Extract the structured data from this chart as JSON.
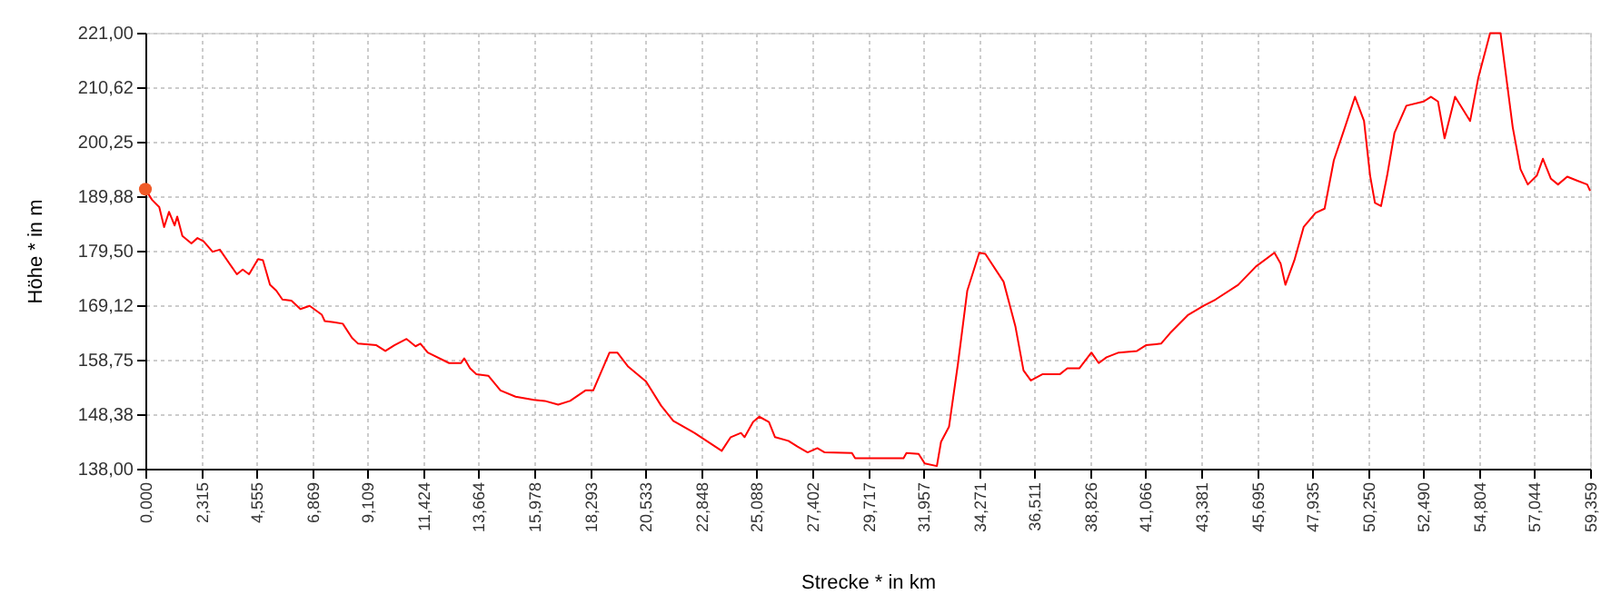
{
  "chart_data": {
    "type": "line",
    "xlabel": "Strecke *  in  km",
    "ylabel": "Höhe *  in  m",
    "xlim": [
      0,
      59.359
    ],
    "ylim": [
      138,
      221
    ],
    "xticks": [
      {
        "value": 0,
        "label": "0,000"
      },
      {
        "value": 2.315,
        "label": "2,315"
      },
      {
        "value": 4.555,
        "label": "4,555"
      },
      {
        "value": 6.869,
        "label": "6,869"
      },
      {
        "value": 9.109,
        "label": "9,109"
      },
      {
        "value": 11.424,
        "label": "11,424"
      },
      {
        "value": 13.664,
        "label": "13,664"
      },
      {
        "value": 15.978,
        "label": "15,978"
      },
      {
        "value": 18.293,
        "label": "18,293"
      },
      {
        "value": 20.533,
        "label": "20,533"
      },
      {
        "value": 22.848,
        "label": "22,848"
      },
      {
        "value": 25.088,
        "label": "25,088"
      },
      {
        "value": 27.402,
        "label": "27,402"
      },
      {
        "value": 29.717,
        "label": "29,717"
      },
      {
        "value": 31.957,
        "label": "31,957"
      },
      {
        "value": 34.271,
        "label": "34,271"
      },
      {
        "value": 36.511,
        "label": "36,511"
      },
      {
        "value": 38.826,
        "label": "38,826"
      },
      {
        "value": 41.066,
        "label": "41,066"
      },
      {
        "value": 43.381,
        "label": "43,381"
      },
      {
        "value": 45.695,
        "label": "45,695"
      },
      {
        "value": 47.935,
        "label": "47,935"
      },
      {
        "value": 50.25,
        "label": "50,250"
      },
      {
        "value": 52.49,
        "label": "52,490"
      },
      {
        "value": 54.804,
        "label": "54,804"
      },
      {
        "value": 57.044,
        "label": "57,044"
      },
      {
        "value": 59.359,
        "label": "59,359"
      }
    ],
    "yticks": [
      {
        "value": 138,
        "label": "138,00"
      },
      {
        "value": 148.375,
        "label": "148,38"
      },
      {
        "value": 158.75,
        "label": "158,75"
      },
      {
        "value": 169.125,
        "label": "169,12"
      },
      {
        "value": 179.5,
        "label": "179,50"
      },
      {
        "value": 189.875,
        "label": "189,88"
      },
      {
        "value": 200.25,
        "label": "200,25"
      },
      {
        "value": 210.625,
        "label": "210,62"
      },
      {
        "value": 221,
        "label": "221,00"
      }
    ],
    "grid": true,
    "line_style": "solid",
    "series": [
      {
        "color": "#ff0000",
        "marker": "none",
        "x": [
          0,
          0.27,
          0.57,
          0.77,
          0.97,
          1.2,
          1.31,
          1.52,
          1.89,
          2.14,
          2.39,
          2.76,
          3.06,
          3.76,
          4.0,
          4.26,
          4.63,
          4.83,
          5.12,
          5.38,
          5.63,
          6.0,
          6.37,
          6.75,
          7.25,
          7.37,
          7.74,
          8.11,
          8.49,
          8.74,
          9.49,
          9.86,
          10.23,
          10.73,
          11.1,
          11.3,
          11.6,
          12.48,
          12.97,
          13.1,
          13.34,
          13.6,
          14.09,
          14.59,
          15.21,
          15.96,
          16.41,
          16.96,
          17.45,
          18.08,
          18.4,
          19.07,
          19.39,
          19.82,
          20.57,
          21.19,
          21.69,
          22.56,
          23.68,
          24.05,
          24.47,
          24.62,
          24.97,
          25.22,
          25.62,
          25.87,
          26.42,
          26.79,
          27.21,
          27.61,
          27.91,
          29.03,
          29.16,
          31.15,
          31.27,
          31.77,
          32.02,
          32.52,
          32.69,
          33.02,
          33.39,
          33.77,
          34.26,
          34.51,
          35.26,
          35.75,
          36.08,
          36.38,
          36.87,
          37.58,
          37.88,
          38.37,
          38.87,
          39.17,
          39.49,
          39.99,
          40.74,
          41.11,
          41.73,
          42.1,
          42.85,
          43.48,
          43.97,
          44.9,
          45.63,
          46.39,
          46.64,
          46.84,
          47.21,
          47.59,
          48.08,
          48.45,
          48.83,
          49.33,
          49.7,
          50.07,
          50.32,
          50.52,
          50.77,
          51.02,
          51.32,
          51.81,
          52.52,
          52.82,
          53.11,
          53.38,
          53.81,
          54.43,
          54.76,
          55.25,
          55.68,
          56.18,
          56.5,
          56.8,
          57.17,
          57.42,
          57.75,
          58.04,
          58.42,
          58.79,
          59.24,
          59.359
        ],
        "values": [
          191.2,
          189.2,
          187.8,
          184.0,
          186.9,
          184.3,
          186.0,
          182.3,
          180.9,
          181.9,
          181.3,
          179.3,
          179.7,
          175.0,
          175.9,
          175.0,
          177.9,
          177.7,
          173.0,
          171.9,
          170.2,
          170.0,
          168.4,
          169.0,
          167.3,
          166.1,
          165.9,
          165.6,
          162.9,
          161.8,
          161.5,
          160.4,
          161.5,
          162.7,
          161.3,
          161.8,
          160.1,
          158.1,
          158.1,
          159.0,
          157.1,
          156.0,
          155.7,
          152.9,
          151.7,
          151.1,
          150.9,
          150.2,
          150.9,
          152.9,
          152.9,
          160.1,
          160.1,
          157.5,
          154.6,
          150.0,
          147.1,
          144.8,
          141.4,
          144.0,
          144.8,
          144.0,
          146.9,
          147.9,
          146.9,
          144.0,
          143.3,
          142.2,
          141.1,
          141.9,
          141.1,
          141.0,
          140.0,
          140.0,
          141.0,
          140.8,
          139.0,
          138.5,
          143.1,
          146.0,
          158.1,
          171.9,
          179.1,
          178.9,
          173.6,
          165.0,
          156.7,
          154.8,
          156.0,
          156.0,
          157.1,
          157.1,
          160.1,
          158.1,
          159.2,
          160.1,
          160.4,
          161.5,
          161.8,
          163.8,
          167.3,
          169.0,
          170.2,
          173.0,
          176.5,
          179.1,
          177.1,
          173.0,
          177.7,
          184.0,
          186.7,
          187.5,
          196.7,
          203.6,
          208.8,
          204.2,
          193.8,
          188.6,
          188.0,
          193.8,
          201.9,
          207.1,
          207.9,
          208.8,
          207.9,
          200.9,
          208.8,
          204.2,
          212.3,
          220.9,
          220.9,
          203.0,
          195.0,
          192.1,
          193.8,
          197.0,
          193.2,
          192.1,
          193.6,
          192.9,
          192.1,
          190.9
        ]
      },
      {
        "type": "scatter",
        "color": "#f05a28",
        "marker": "circle",
        "x": [
          0
        ],
        "values": [
          191.2
        ]
      }
    ]
  }
}
